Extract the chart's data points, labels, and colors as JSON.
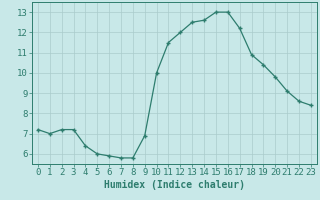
{
  "x": [
    0,
    1,
    2,
    3,
    4,
    5,
    6,
    7,
    8,
    9,
    10,
    11,
    12,
    13,
    14,
    15,
    16,
    17,
    18,
    19,
    20,
    21,
    22,
    23
  ],
  "y": [
    7.2,
    7.0,
    7.2,
    7.2,
    6.4,
    6.0,
    5.9,
    5.8,
    5.8,
    6.9,
    10.0,
    11.5,
    12.0,
    12.5,
    12.6,
    13.0,
    13.0,
    12.2,
    10.9,
    10.4,
    9.8,
    9.1,
    8.6,
    8.4
  ],
  "line_color": "#2e7d6e",
  "marker": "+",
  "marker_size": 3,
  "bg_color": "#c8e8e8",
  "grid_color": "#aacccc",
  "xlabel": "Humidex (Indice chaleur)",
  "ylim": [
    5.5,
    13.5
  ],
  "xlim": [
    -0.5,
    23.5
  ],
  "yticks": [
    6,
    7,
    8,
    9,
    10,
    11,
    12,
    13
  ],
  "xticks": [
    0,
    1,
    2,
    3,
    4,
    5,
    6,
    7,
    8,
    9,
    10,
    11,
    12,
    13,
    14,
    15,
    16,
    17,
    18,
    19,
    20,
    21,
    22,
    23
  ],
  "tick_color": "#2e7d6e",
  "xlabel_fontsize": 7,
  "tick_fontsize": 6.5
}
